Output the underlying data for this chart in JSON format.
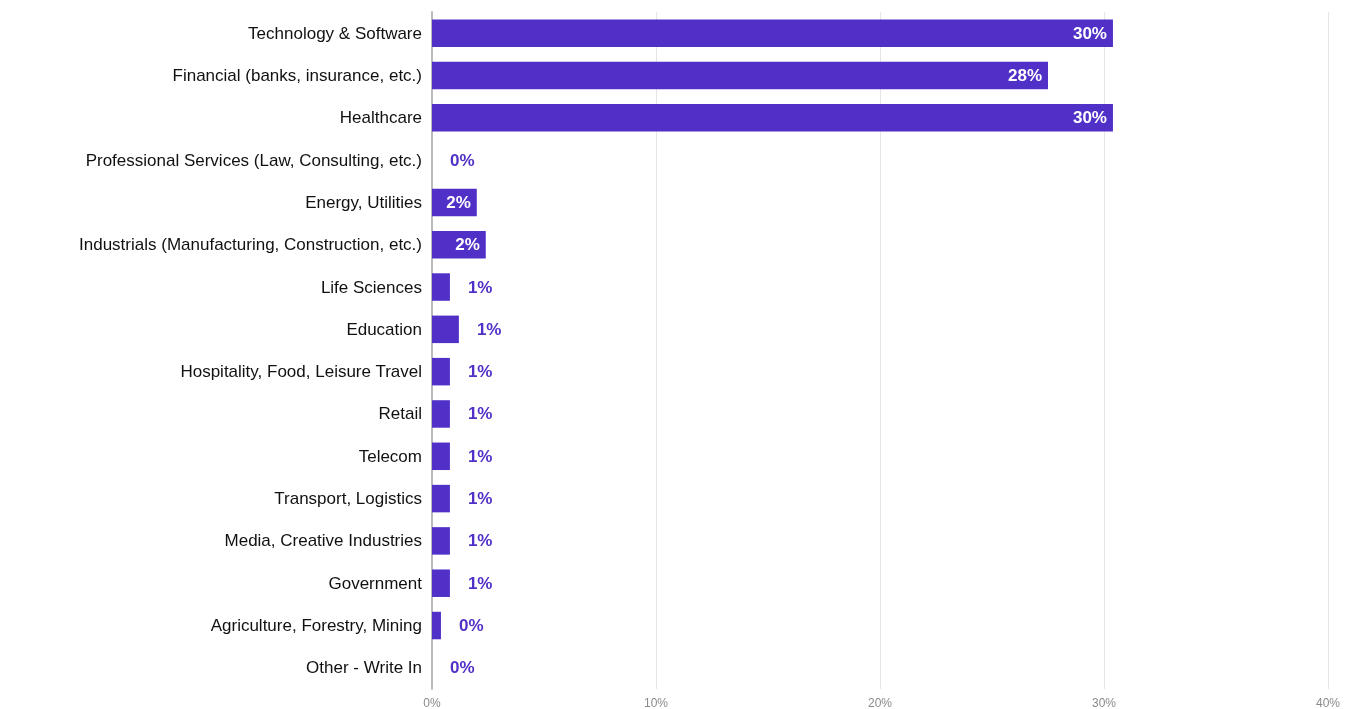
{
  "chart_data": {
    "type": "bar",
    "orientation": "horizontal",
    "color": "#5130c8",
    "categories": [
      "Technology & Software",
      "Financial (banks, insurance, etc.)",
      "Healthcare",
      "Professional Services (Law, Consulting, etc.)",
      "Energy, Utilities",
      "Industrials (Manufacturing, Construction, etc.)",
      "Life Sciences",
      "Education",
      "Hospitality, Food, Leisure Travel",
      "Retail",
      "Telecom",
      "Transport, Logistics",
      "Media, Creative Industries",
      "Government",
      "Agriculture, Forestry, Mining",
      "Other - Write In"
    ],
    "values": [
      30.4,
      27.5,
      30.4,
      0,
      2.0,
      2.4,
      0.8,
      1.2,
      0.8,
      0.8,
      0.8,
      0.8,
      0.8,
      0.8,
      0.4,
      0
    ],
    "value_labels": [
      "30%",
      "28%",
      "30%",
      "0%",
      "2%",
      "2%",
      "1%",
      "1%",
      "1%",
      "1%",
      "1%",
      "1%",
      "1%",
      "1%",
      "0%",
      "0%"
    ],
    "xlim": [
      0,
      40
    ],
    "xticks": [
      {
        "value": 0,
        "label": "0%"
      },
      {
        "value": 10,
        "label": "10%"
      },
      {
        "value": 20,
        "label": "20%"
      },
      {
        "value": 30,
        "label": "30%"
      },
      {
        "value": 40,
        "label": "40%"
      }
    ],
    "grid": "x"
  }
}
